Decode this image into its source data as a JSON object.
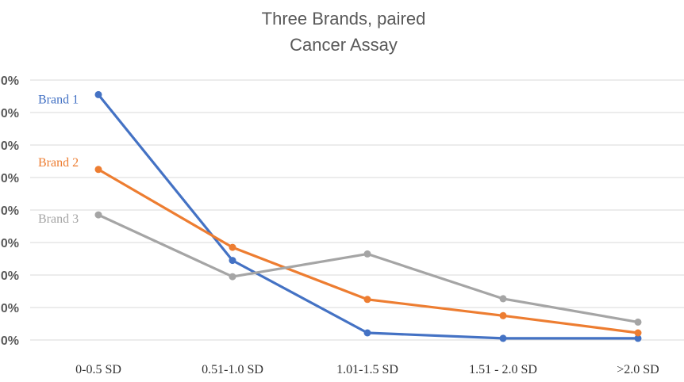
{
  "chart_data": {
    "type": "line",
    "title": "Three Brands, paired",
    "subtitle": "Cancer Assay",
    "xlabel": "",
    "ylabel": "",
    "categories": [
      "0-0.5 SD",
      "0.51-1.0 SD",
      "1.01-1.5 SD",
      "1.51 - 2.0 SD",
      ">2.0 SD"
    ],
    "y_ticks": [
      "0%",
      "0%",
      "0%",
      "0%",
      "0%",
      "0%",
      "0%",
      "0%",
      "0%"
    ],
    "ylim": [
      0,
      8
    ],
    "grid": true,
    "legend": "inline-left",
    "series": [
      {
        "name": "Brand 1",
        "color": "#4472C4",
        "values": [
          7.55,
          2.45,
          0.22,
          0.05,
          0.05
        ]
      },
      {
        "name": "Brand 2",
        "color": "#ED7D31",
        "values": [
          5.25,
          2.85,
          1.25,
          0.75,
          0.22
        ]
      },
      {
        "name": "Brand 3",
        "color": "#A5A5A5",
        "values": [
          3.85,
          1.95,
          2.65,
          1.27,
          0.55
        ]
      }
    ]
  }
}
